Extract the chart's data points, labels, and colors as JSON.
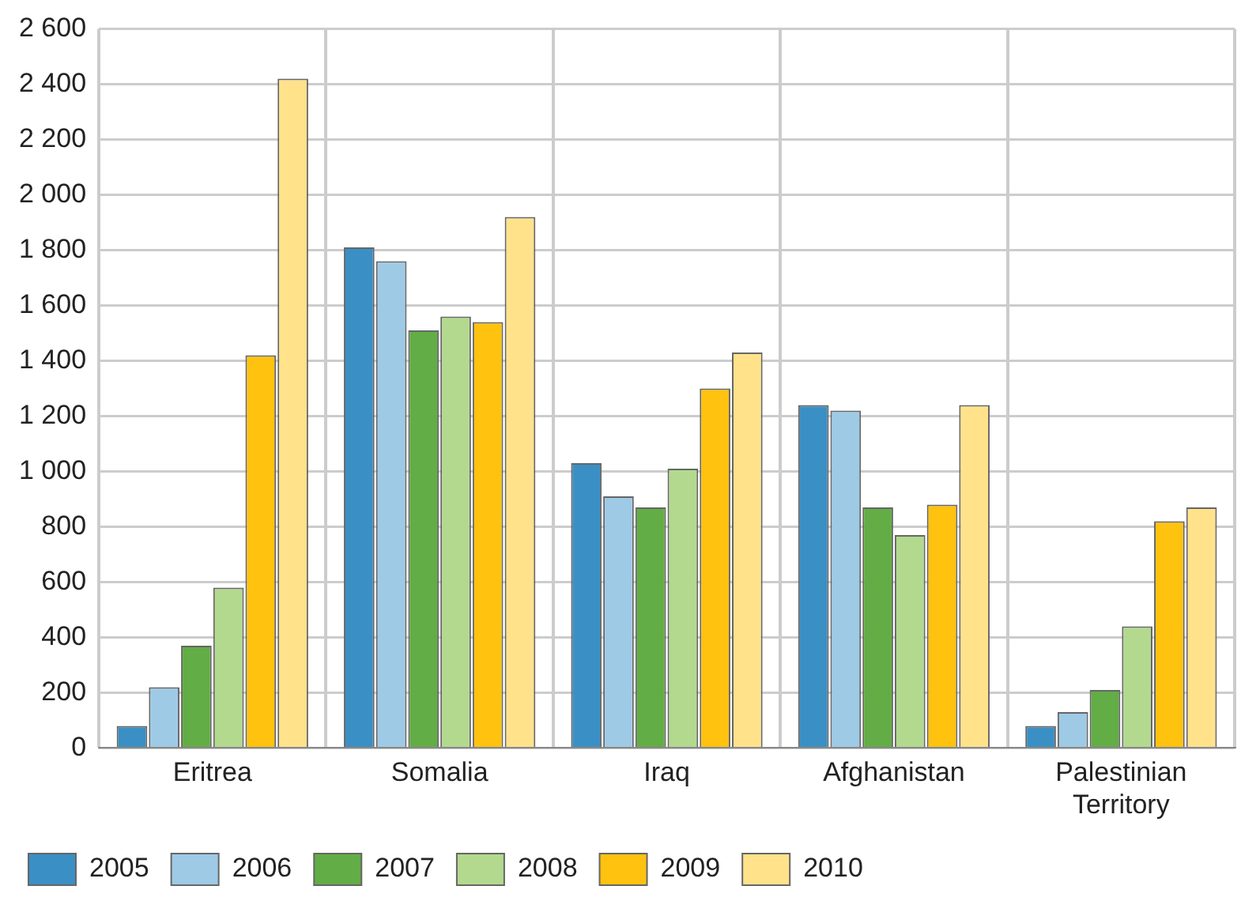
{
  "chart_data": {
    "type": "bar",
    "categories": [
      "Eritrea",
      "Somalia",
      "Iraq",
      "Afghanistan",
      "Palestinian Territory"
    ],
    "series": [
      {
        "name": "2005",
        "color": "#3a8fc4",
        "values": [
          80,
          1810,
          1030,
          1240,
          80
        ]
      },
      {
        "name": "2006",
        "color": "#9ecae6",
        "values": [
          220,
          1760,
          910,
          1220,
          130
        ]
      },
      {
        "name": "2007",
        "color": "#62ad45",
        "values": [
          370,
          1510,
          870,
          870,
          210
        ]
      },
      {
        "name": "2008",
        "color": "#b3d98f",
        "values": [
          580,
          1560,
          1010,
          770,
          440
        ]
      },
      {
        "name": "2009",
        "color": "#ffc20e",
        "values": [
          1420,
          1540,
          1300,
          880,
          820
        ]
      },
      {
        "name": "2010",
        "color": "#ffe28a",
        "values": [
          2420,
          1920,
          1430,
          1240,
          870
        ]
      }
    ],
    "ylim": [
      0,
      2600
    ],
    "yticks": [
      0,
      200,
      400,
      600,
      800,
      {
        "value": 1000,
        "label": "1 000"
      },
      {
        "value": 1200,
        "label": "1 200"
      },
      {
        "value": 1400,
        "label": "1 400"
      },
      {
        "value": 1600,
        "label": "1 600"
      },
      {
        "value": 1800,
        "label": "1 800"
      },
      {
        "value": 2000,
        "label": "2 000"
      },
      {
        "value": 2200,
        "label": "2 200"
      },
      {
        "value": 2400,
        "label": "2 400"
      },
      {
        "value": 2600,
        "label": "2 600"
      }
    ],
    "grid": true,
    "legend": "bottom left"
  }
}
